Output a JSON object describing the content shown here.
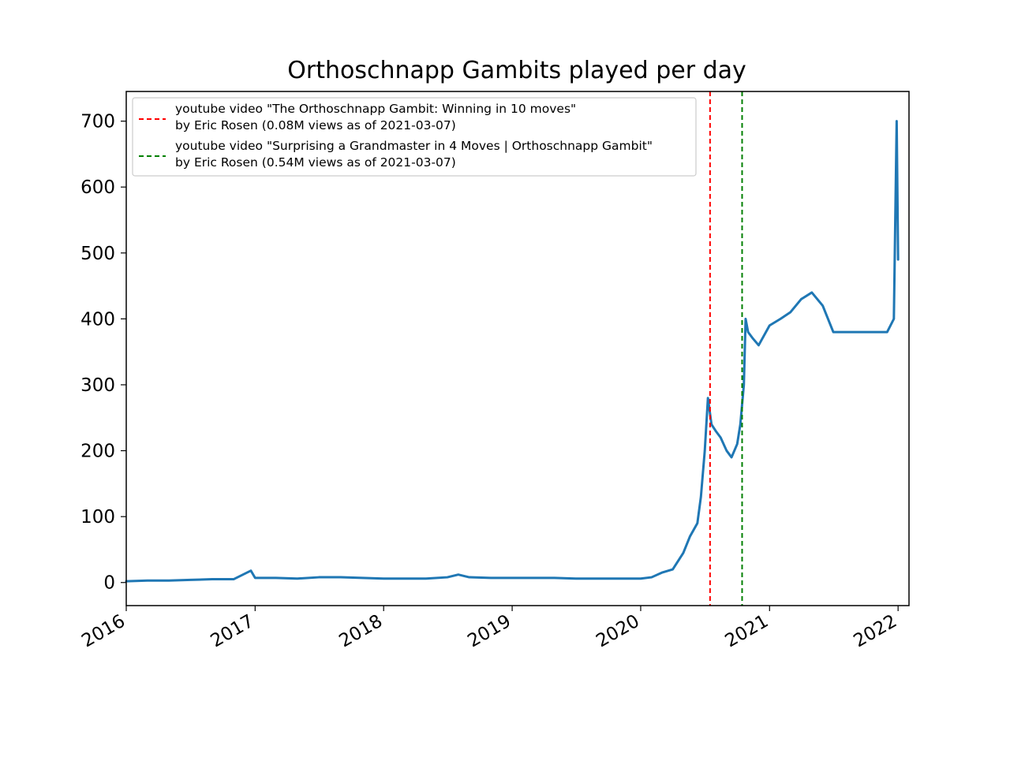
{
  "chart_data": {
    "type": "line",
    "title": "Orthoschnapp Gambits played per day",
    "xlabel": "",
    "ylabel": "",
    "x_axis": "date",
    "xlim": [
      "2016-01-01",
      "2022-02-01"
    ],
    "ylim": [
      -35,
      745
    ],
    "x_ticks": [
      "2016",
      "2017",
      "2018",
      "2019",
      "2020",
      "2021",
      "2022"
    ],
    "y_ticks": [
      0,
      100,
      200,
      300,
      400,
      500,
      600,
      700
    ],
    "grid": false,
    "legend_position": "top-left",
    "colors": {
      "series": "#1f77b4",
      "video1": "#ff0000",
      "video2": "#008000"
    },
    "series": [
      {
        "points": [
          [
            "2016-01-01",
            2
          ],
          [
            "2016-03-01",
            3
          ],
          [
            "2016-05-01",
            3
          ],
          [
            "2016-07-01",
            4
          ],
          [
            "2016-09-01",
            5
          ],
          [
            "2016-11-01",
            5
          ],
          [
            "2016-12-20",
            18
          ],
          [
            "2017-01-01",
            7
          ],
          [
            "2017-03-01",
            7
          ],
          [
            "2017-05-01",
            6
          ],
          [
            "2017-07-01",
            8
          ],
          [
            "2017-09-01",
            8
          ],
          [
            "2017-11-01",
            7
          ],
          [
            "2018-01-01",
            6
          ],
          [
            "2018-03-01",
            6
          ],
          [
            "2018-05-01",
            6
          ],
          [
            "2018-07-01",
            8
          ],
          [
            "2018-08-01",
            12
          ],
          [
            "2018-09-01",
            8
          ],
          [
            "2018-11-01",
            7
          ],
          [
            "2019-01-01",
            7
          ],
          [
            "2019-03-01",
            7
          ],
          [
            "2019-05-01",
            7
          ],
          [
            "2019-07-01",
            6
          ],
          [
            "2019-09-01",
            6
          ],
          [
            "2019-11-01",
            6
          ],
          [
            "2020-01-01",
            6
          ],
          [
            "2020-02-01",
            8
          ],
          [
            "2020-03-01",
            15
          ],
          [
            "2020-04-01",
            20
          ],
          [
            "2020-05-01",
            45
          ],
          [
            "2020-05-20",
            70
          ],
          [
            "2020-06-10",
            90
          ],
          [
            "2020-06-20",
            130
          ],
          [
            "2020-07-01",
            200
          ],
          [
            "2020-07-10",
            280
          ],
          [
            "2020-07-20",
            240
          ],
          [
            "2020-08-01",
            230
          ],
          [
            "2020-08-15",
            220
          ],
          [
            "2020-09-01",
            200
          ],
          [
            "2020-09-15",
            190
          ],
          [
            "2020-10-01",
            210
          ],
          [
            "2020-10-10",
            240
          ],
          [
            "2020-10-20",
            300
          ],
          [
            "2020-10-25",
            400
          ],
          [
            "2020-11-01",
            380
          ],
          [
            "2020-11-15",
            370
          ],
          [
            "2020-12-01",
            360
          ],
          [
            "2021-01-01",
            390
          ],
          [
            "2021-02-01",
            400
          ],
          [
            "2021-03-01",
            410
          ],
          [
            "2021-04-01",
            430
          ],
          [
            "2021-05-01",
            440
          ],
          [
            "2021-06-01",
            420
          ],
          [
            "2021-07-01",
            380
          ],
          [
            "2021-08-01",
            380
          ],
          [
            "2021-09-01",
            380
          ],
          [
            "2021-10-01",
            380
          ],
          [
            "2021-11-01",
            380
          ],
          [
            "2021-12-01",
            380
          ],
          [
            "2021-12-20",
            400
          ],
          [
            "2021-12-28",
            700
          ],
          [
            "2022-01-01",
            490
          ]
        ]
      }
    ],
    "annotations": [
      {
        "date": "2020-07-16",
        "color": "#ff0000",
        "style": "dashed"
      },
      {
        "date": "2020-10-15",
        "color": "#008000",
        "style": "dashed"
      }
    ],
    "legend": [
      {
        "line1": "youtube video \"The Orthoschnapp Gambit: Winning in 10 moves\"",
        "line2": "by Eric Rosen (0.08M views as of 2021-03-07)",
        "color": "#ff0000"
      },
      {
        "line1": "youtube video \"Surprising a Grandmaster in 4 Moves | Orthoschnapp Gambit\"",
        "line2": "by Eric Rosen (0.54M views as of 2021-03-07)",
        "color": "#008000"
      }
    ]
  }
}
